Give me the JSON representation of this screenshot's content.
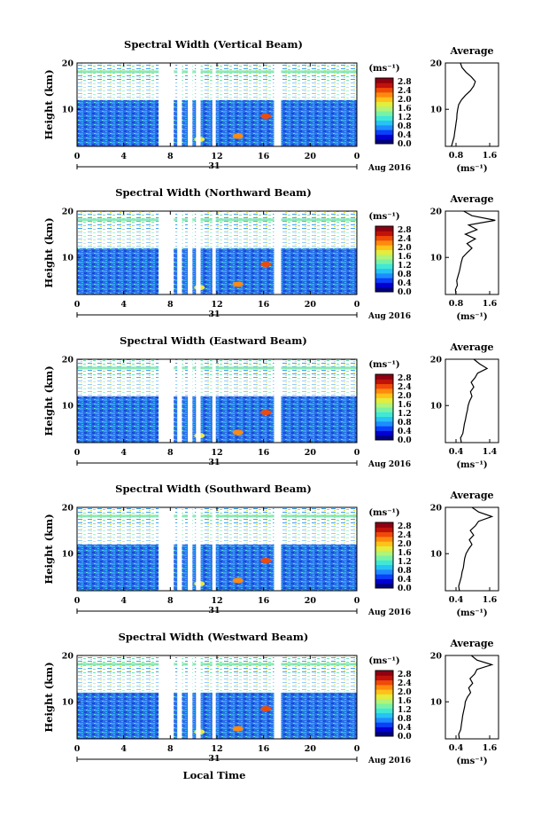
{
  "figure": {
    "xlabel": "Local Time",
    "date_label": "Aug 2016",
    "day_label": "31"
  },
  "colorbar": {
    "unit_label": "(ms⁻¹)",
    "ticks": [
      "2.8",
      "2.4",
      "2.0",
      "1.6",
      "1.2",
      "0.8",
      "0.4",
      "0.0"
    ],
    "colors": [
      "#00007f",
      "#0000d0",
      "#0b3ffa",
      "#1e8cff",
      "#27c3f4",
      "#3fe8d7",
      "#7af2a4",
      "#b0f479",
      "#e4ec3c",
      "#ffc21a",
      "#ff8a0d",
      "#ef4a09",
      "#c0120b",
      "#8f0010"
    ]
  },
  "chart_data": [
    {
      "type": "heatmap",
      "title": "Spectral Width (Vertical Beam)",
      "ylabel": "Height (km)",
      "x_ticks": [
        "0",
        "4",
        "8",
        "12",
        "16",
        "20",
        "0"
      ],
      "xlim": [
        0,
        24
      ],
      "y_ticks": [
        "20",
        "10"
      ],
      "ylim": [
        2,
        20
      ],
      "data_gaps_hours": [
        [
          7.0,
          8.3
        ],
        [
          8.6,
          9.0
        ],
        [
          9.5,
          9.9
        ],
        [
          10.2,
          10.6
        ],
        [
          11.6,
          11.9
        ],
        [
          16.9,
          17.5
        ]
      ],
      "average_profile": {
        "title": "Average",
        "xlabel": "(ms⁻¹)",
        "x_ticks": [
          "0.8",
          "1.6"
        ],
        "xlim": [
          0.4,
          2.0
        ],
        "y_ticks": [
          "20",
          "10"
        ],
        "ylim": [
          2,
          20
        ],
        "height_km": [
          2,
          3,
          4,
          5,
          6,
          7,
          8,
          9,
          10,
          11,
          12,
          13,
          14,
          15,
          16,
          17,
          18,
          19,
          20
        ],
        "width_ms": [
          0.58,
          0.62,
          0.66,
          0.68,
          0.7,
          0.72,
          0.74,
          0.75,
          0.77,
          0.8,
          0.88,
          1.0,
          1.15,
          1.25,
          1.3,
          1.18,
          1.02,
          0.9,
          0.85
        ]
      }
    },
    {
      "type": "heatmap",
      "title": "Spectral Width (Northward Beam)",
      "ylabel": "Height (km)",
      "x_ticks": [
        "0",
        "4",
        "8",
        "12",
        "16",
        "20",
        "0"
      ],
      "xlim": [
        0,
        24
      ],
      "y_ticks": [
        "20",
        "10"
      ],
      "ylim": [
        2,
        20
      ],
      "data_gaps_hours": [
        [
          7.0,
          8.3
        ],
        [
          8.6,
          9.0
        ],
        [
          9.5,
          9.9
        ],
        [
          10.2,
          10.6
        ],
        [
          11.6,
          11.9
        ],
        [
          16.9,
          17.5
        ]
      ],
      "average_profile": {
        "title": "Average",
        "xlabel": "(ms⁻¹)",
        "x_ticks": [
          "0.8",
          "1.6"
        ],
        "xlim": [
          0.4,
          2.0
        ],
        "y_ticks": [
          "20",
          "10"
        ],
        "ylim": [
          2,
          20
        ],
        "height_km": [
          2,
          3,
          4,
          5,
          6,
          7,
          8,
          9,
          10,
          11,
          12,
          13,
          14,
          15,
          16,
          17,
          18,
          19,
          20
        ],
        "width_ms": [
          0.72,
          0.7,
          0.76,
          0.74,
          0.78,
          0.82,
          0.85,
          0.88,
          0.92,
          1.05,
          1.2,
          1.05,
          1.3,
          1.0,
          1.35,
          1.1,
          1.9,
          1.2,
          0.95
        ]
      }
    },
    {
      "type": "heatmap",
      "title": "Spectral Width (Eastward Beam)",
      "ylabel": "Height (km)",
      "x_ticks": [
        "0",
        "4",
        "8",
        "12",
        "16",
        "20",
        "0"
      ],
      "xlim": [
        0,
        24
      ],
      "y_ticks": [
        "20",
        "10"
      ],
      "ylim": [
        2,
        20
      ],
      "data_gaps_hours": [
        [
          7.0,
          8.3
        ],
        [
          8.6,
          9.0
        ],
        [
          9.5,
          9.9
        ],
        [
          10.2,
          10.6
        ],
        [
          11.6,
          11.9
        ],
        [
          16.9,
          17.5
        ]
      ],
      "average_profile": {
        "title": "Average",
        "xlabel": "(ms⁻¹)",
        "x_ticks": [
          "0.4",
          "1.4"
        ],
        "xlim": [
          0.2,
          1.6
        ],
        "y_ticks": [
          "20",
          "10"
        ],
        "ylim": [
          2,
          20
        ],
        "height_km": [
          2,
          3,
          4,
          5,
          6,
          7,
          8,
          9,
          10,
          11,
          12,
          13,
          14,
          15,
          16,
          17,
          18,
          19,
          20
        ],
        "width_ms": [
          0.62,
          0.6,
          0.66,
          0.68,
          0.7,
          0.73,
          0.75,
          0.78,
          0.8,
          0.84,
          0.9,
          0.86,
          0.95,
          0.88,
          0.98,
          1.05,
          1.3,
          1.1,
          0.95
        ]
      }
    },
    {
      "type": "heatmap",
      "title": "Spectral Width (Southward Beam)",
      "ylabel": "Height (km)",
      "x_ticks": [
        "0",
        "4",
        "8",
        "12",
        "16",
        "20",
        "0"
      ],
      "xlim": [
        0,
        24
      ],
      "y_ticks": [
        "20",
        "10"
      ],
      "ylim": [
        2,
        20
      ],
      "data_gaps_hours": [
        [
          7.0,
          8.3
        ],
        [
          8.6,
          9.0
        ],
        [
          9.5,
          9.9
        ],
        [
          10.2,
          10.6
        ],
        [
          11.6,
          11.9
        ],
        [
          16.9,
          17.5
        ]
      ],
      "average_profile": {
        "title": "Average",
        "xlabel": "(ms⁻¹)",
        "x_ticks": [
          "0.4",
          "1.6"
        ],
        "xlim": [
          0.2,
          1.8
        ],
        "y_ticks": [
          "20",
          "10"
        ],
        "ylim": [
          2,
          20
        ],
        "height_km": [
          2,
          3,
          4,
          5,
          6,
          7,
          8,
          9,
          10,
          11,
          12,
          13,
          14,
          15,
          16,
          17,
          18,
          19,
          20
        ],
        "width_ms": [
          0.62,
          0.6,
          0.64,
          0.68,
          0.7,
          0.74,
          0.76,
          0.78,
          0.82,
          0.9,
          1.0,
          0.92,
          1.05,
          0.95,
          1.1,
          1.2,
          1.6,
          1.2,
          1.0
        ]
      }
    },
    {
      "type": "heatmap",
      "title": "Spectral Width (Westward Beam)",
      "ylabel": "Height (km)",
      "x_ticks": [
        "0",
        "4",
        "8",
        "12",
        "16",
        "20",
        "0"
      ],
      "xlim": [
        0,
        24
      ],
      "y_ticks": [
        "20",
        "10"
      ],
      "ylim": [
        2,
        20
      ],
      "data_gaps_hours": [
        [
          7.0,
          8.3
        ],
        [
          8.6,
          9.0
        ],
        [
          9.5,
          9.9
        ],
        [
          10.2,
          10.6
        ],
        [
          11.6,
          11.9
        ],
        [
          16.9,
          17.5
        ]
      ],
      "average_profile": {
        "title": "Average",
        "xlabel": "(ms⁻¹)",
        "x_ticks": [
          "0.4",
          "1.6"
        ],
        "xlim": [
          0.2,
          1.8
        ],
        "y_ticks": [
          "20",
          "10"
        ],
        "ylim": [
          2,
          20
        ],
        "height_km": [
          2,
          3,
          4,
          5,
          6,
          7,
          8,
          9,
          10,
          11,
          12,
          13,
          14,
          15,
          16,
          17,
          18,
          19,
          20
        ],
        "width_ms": [
          0.62,
          0.6,
          0.66,
          0.68,
          0.7,
          0.72,
          0.75,
          0.78,
          0.8,
          0.86,
          0.96,
          0.9,
          1.02,
          0.94,
          1.08,
          1.15,
          1.6,
          1.15,
          0.98
        ]
      }
    }
  ]
}
